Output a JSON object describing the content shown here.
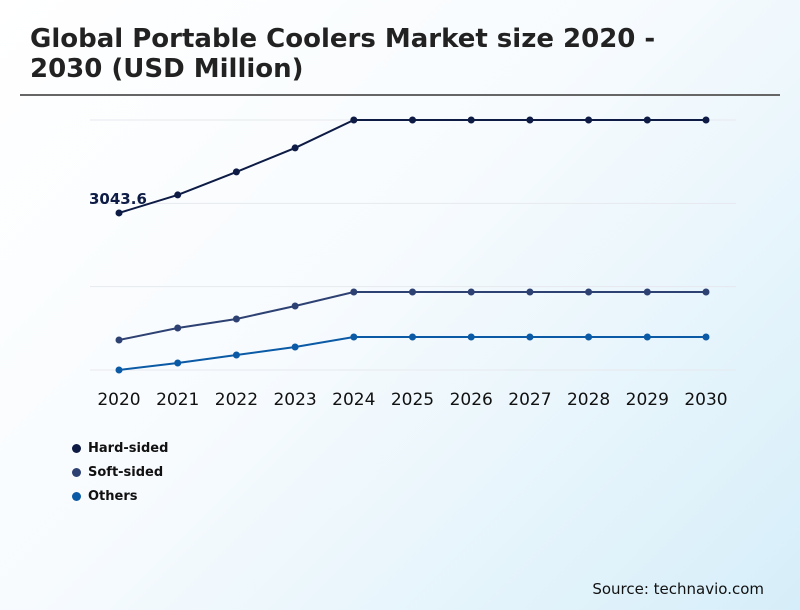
{
  "chart_data": {
    "type": "line",
    "title": "Global Portable Coolers Market size 2020 - 2030 (USD Million)",
    "xlabel": "",
    "ylabel": "",
    "categories": [
      "2020",
      "2021",
      "2022",
      "2023",
      "2024",
      "2025",
      "2026",
      "2027",
      "2028",
      "2029",
      "2030"
    ],
    "ylim": [
      0,
      4845
    ],
    "grid": true,
    "legend_position": "bottom-left",
    "annotations": [
      {
        "series": "Hard-sided",
        "x": "2020",
        "label": "3043.6"
      }
    ],
    "series": [
      {
        "name": "Hard-sided",
        "color": "#0d1b45",
        "values": [
          3043.6,
          3393,
          3839,
          4304,
          4845,
          4845,
          4845,
          4845,
          4845,
          4845,
          4845
        ]
      },
      {
        "name": "Soft-sided",
        "color": "#2e4173",
        "values": [
          582,
          814,
          989,
          1241,
          1512,
          1512,
          1512,
          1512,
          1512,
          1512,
          1512
        ]
      },
      {
        "name": "Others",
        "color": "#0b5aa6",
        "values": [
          0,
          136,
          291,
          446,
          640,
          640,
          640,
          640,
          640,
          640,
          640
        ]
      }
    ]
  },
  "source": "Source: technavio.com"
}
